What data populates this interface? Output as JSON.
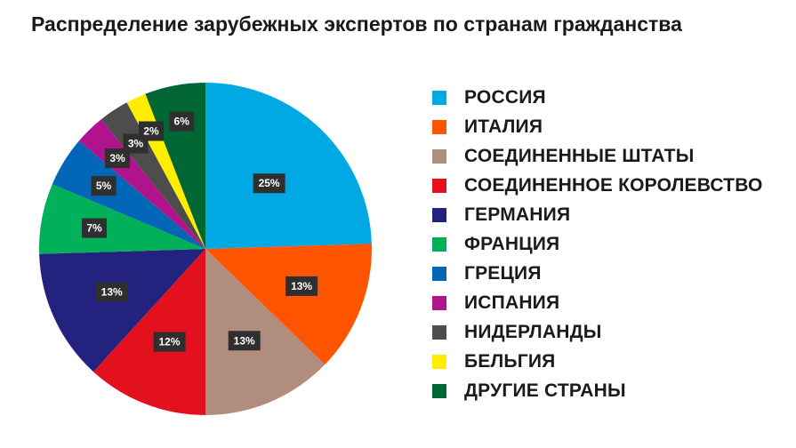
{
  "chart_data": {
    "type": "pie",
    "title": "Распределение зарубежных экспертов по странам гражданства",
    "legend_position": "right",
    "slices": [
      {
        "label": "РОССИЯ",
        "value": 25,
        "display": "25%",
        "color": "#00a9e4"
      },
      {
        "label": "ИТАЛИЯ",
        "value": 13,
        "display": "13%",
        "color": "#ff5400"
      },
      {
        "label": "СОЕДИНЕННЫЕ ШТАТЫ",
        "value": 13,
        "display": "13%",
        "color": "#b18d7d"
      },
      {
        "label": "СОЕДИНЕННОЕ КОРОЛЕВСТВО",
        "value": 12,
        "display": "12%",
        "color": "#e3101e"
      },
      {
        "label": "ГЕРМАНИЯ",
        "value": 13,
        "display": "13%",
        "color": "#23237f"
      },
      {
        "label": "ФРАНЦИЯ",
        "value": 7,
        "display": "7%",
        "color": "#00b15a"
      },
      {
        "label": "ГРЕЦИЯ",
        "value": 5,
        "display": "5%",
        "color": "#0066b5"
      },
      {
        "label": "ИСПАНИЯ",
        "value": 3,
        "display": "3%",
        "color": "#b0138c"
      },
      {
        "label": "НИДЕРЛАНДЫ",
        "value": 3,
        "display": "3%",
        "color": "#4d4d4d"
      },
      {
        "label": "БЕЛЬГИЯ",
        "value": 2,
        "display": "2%",
        "color": "#ffed00"
      },
      {
        "label": "ДРУГИЕ СТРАНЫ",
        "value": 6,
        "display": "6%",
        "color": "#006634"
      }
    ]
  }
}
